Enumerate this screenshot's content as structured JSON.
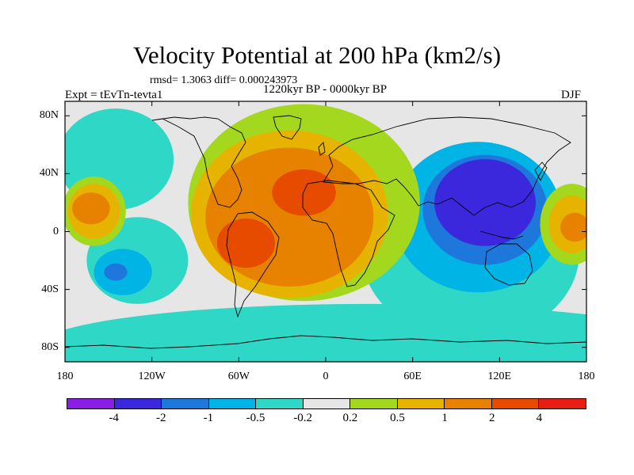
{
  "figure": {
    "title": "Velocity Potential at 200 hPa (km2/s)",
    "stats_line": "rmsd= 1.3063 diff= 0.000243973",
    "period": "1220kyr BP - 0000kyr BP",
    "experiment": "Expt = tEvTn-tevta1",
    "season": "DJF"
  },
  "map": {
    "projection": "cylindrical-equidistant",
    "lon_range": [
      -180,
      180
    ],
    "lat_range": [
      -90,
      90
    ],
    "lon_ticks": [
      {
        "value": -180,
        "label": "180"
      },
      {
        "value": -120,
        "label": "120W"
      },
      {
        "value": -60,
        "label": "60W"
      },
      {
        "value": 0,
        "label": "0"
      },
      {
        "value": 60,
        "label": "60E"
      },
      {
        "value": 120,
        "label": "120E"
      },
      {
        "value": 180,
        "label": "180"
      }
    ],
    "lat_ticks": [
      {
        "value": 80,
        "label": "80N"
      },
      {
        "value": 40,
        "label": "40N"
      },
      {
        "value": 0,
        "label": "0"
      },
      {
        "value": -40,
        "label": "40S"
      },
      {
        "value": -80,
        "label": "80S"
      }
    ]
  },
  "colorbar": {
    "colors": [
      "#8a1ee6",
      "#3c28dc",
      "#1e78dc",
      "#00b4e6",
      "#2ed7c6",
      "#e6e6e6",
      "#a4d81e",
      "#e6b400",
      "#e68200",
      "#e64b00",
      "#e61e14"
    ],
    "labels": [
      "-4",
      "-2",
      "-1",
      "-0.5",
      "-0.2",
      "0.2",
      "0.5",
      "1",
      "2",
      "4"
    ]
  },
  "field_features": [
    {
      "name": "background-neutral",
      "level": 5,
      "lon": 0,
      "lat": 0,
      "rlon": 200,
      "rlat": 100
    },
    {
      "name": "pacific-ne-neg",
      "level": 4,
      "lon": -145,
      "lat": 50,
      "rlon": 40,
      "rlat": 35
    },
    {
      "name": "pacific-weak-neg",
      "level": 4,
      "lon": -130,
      "lat": -20,
      "rlon": 35,
      "rlat": 30
    },
    {
      "name": "pacific-sw-neg",
      "level": 3,
      "lon": -140,
      "lat": -28,
      "rlon": 20,
      "rlat": 16
    },
    {
      "name": "pacific-core-neg",
      "level": 2,
      "lon": -145,
      "lat": -28,
      "rlon": 8,
      "rlat": 6
    },
    {
      "name": "southern-band-neg",
      "level": 4,
      "lon": 30,
      "lat": -80,
      "rlon": 230,
      "rlat": 30
    },
    {
      "name": "indian-pacific-band",
      "level": 4,
      "lon": 100,
      "lat": -15,
      "rlon": 75,
      "rlat": 60
    },
    {
      "name": "asia-outer",
      "level": 3,
      "lon": 105,
      "lat": 10,
      "rlon": 58,
      "rlat": 52
    },
    {
      "name": "asia-mid",
      "level": 2,
      "lon": 110,
      "lat": 15,
      "rlon": 43,
      "rlat": 38
    },
    {
      "name": "asia-core",
      "level": 1,
      "lon": 110,
      "lat": 20,
      "rlon": 35,
      "rlat": 30
    },
    {
      "name": "atlantic-outer",
      "level": 6,
      "lon": -15,
      "lat": 20,
      "rlon": 80,
      "rlat": 68
    },
    {
      "name": "atlantic-ring",
      "level": 7,
      "lon": -25,
      "lat": 12,
      "rlon": 68,
      "rlat": 58
    },
    {
      "name": "atlantic-body",
      "level": 8,
      "lon": -25,
      "lat": 10,
      "rlon": 58,
      "rlat": 48
    },
    {
      "name": "africa-core",
      "level": 9,
      "lon": -15,
      "lat": 27,
      "rlon": 22,
      "rlat": 16
    },
    {
      "name": "brazil-core",
      "level": 9,
      "lon": -55,
      "lat": -8,
      "rlon": 20,
      "rlat": 17
    },
    {
      "name": "eastpac-outer",
      "level": 6,
      "lon": -160,
      "lat": 14,
      "rlon": 22,
      "rlat": 24
    },
    {
      "name": "eastpac-ring",
      "level": 7,
      "lon": -160,
      "lat": 14,
      "rlon": 18,
      "rlat": 19
    },
    {
      "name": "eastpac-core",
      "level": 8,
      "lon": -162,
      "lat": 16,
      "rlon": 13,
      "rlat": 11
    },
    {
      "name": "westpac-outer",
      "level": 6,
      "lon": 170,
      "lat": 5,
      "rlon": 22,
      "rlat": 28
    },
    {
      "name": "westpac-ring",
      "level": 7,
      "lon": 170,
      "lat": 5,
      "rlon": 16,
      "rlat": 20
    },
    {
      "name": "westpac-core",
      "level": 8,
      "lon": 172,
      "lat": 3,
      "rlon": 10,
      "rlat": 10
    }
  ]
}
